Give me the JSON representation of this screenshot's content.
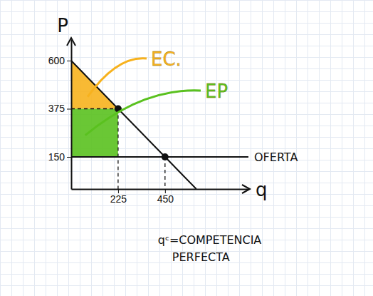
{
  "chart_data": {
    "type": "line",
    "x_label": "q",
    "y_label": "P",
    "xlim": [
      0,
      850
    ],
    "ylim": [
      0,
      700
    ],
    "xticks": [
      225,
      450
    ],
    "yticks": [
      150,
      375,
      600
    ],
    "series": [
      {
        "color": "#111111",
        "x": [
          0,
          225,
          450,
          600
        ],
        "values": [
          600,
          375,
          150,
          0
        ]
      },
      {
        "name": "OFERTA",
        "color": "#111111",
        "x": [
          0,
          850
        ],
        "values": [
          150,
          150
        ]
      }
    ],
    "areas": [
      {
        "name": "EC.",
        "color": "#f7b21e",
        "x": [
          0,
          225,
          0
        ],
        "values": [
          600,
          375,
          375
        ]
      },
      {
        "name": "EP",
        "color": "#5ac11f",
        "x": [
          0,
          225,
          225,
          0
        ],
        "values": [
          375,
          375,
          150,
          150
        ]
      }
    ],
    "points": {
      "x": [
        225,
        450
      ],
      "values": [
        375,
        150
      ],
      "marker": "circle",
      "line_style": "dashed"
    },
    "annotation": [
      "qᶜ=COMPETENCIA",
      "PERFECTA"
    ]
  }
}
